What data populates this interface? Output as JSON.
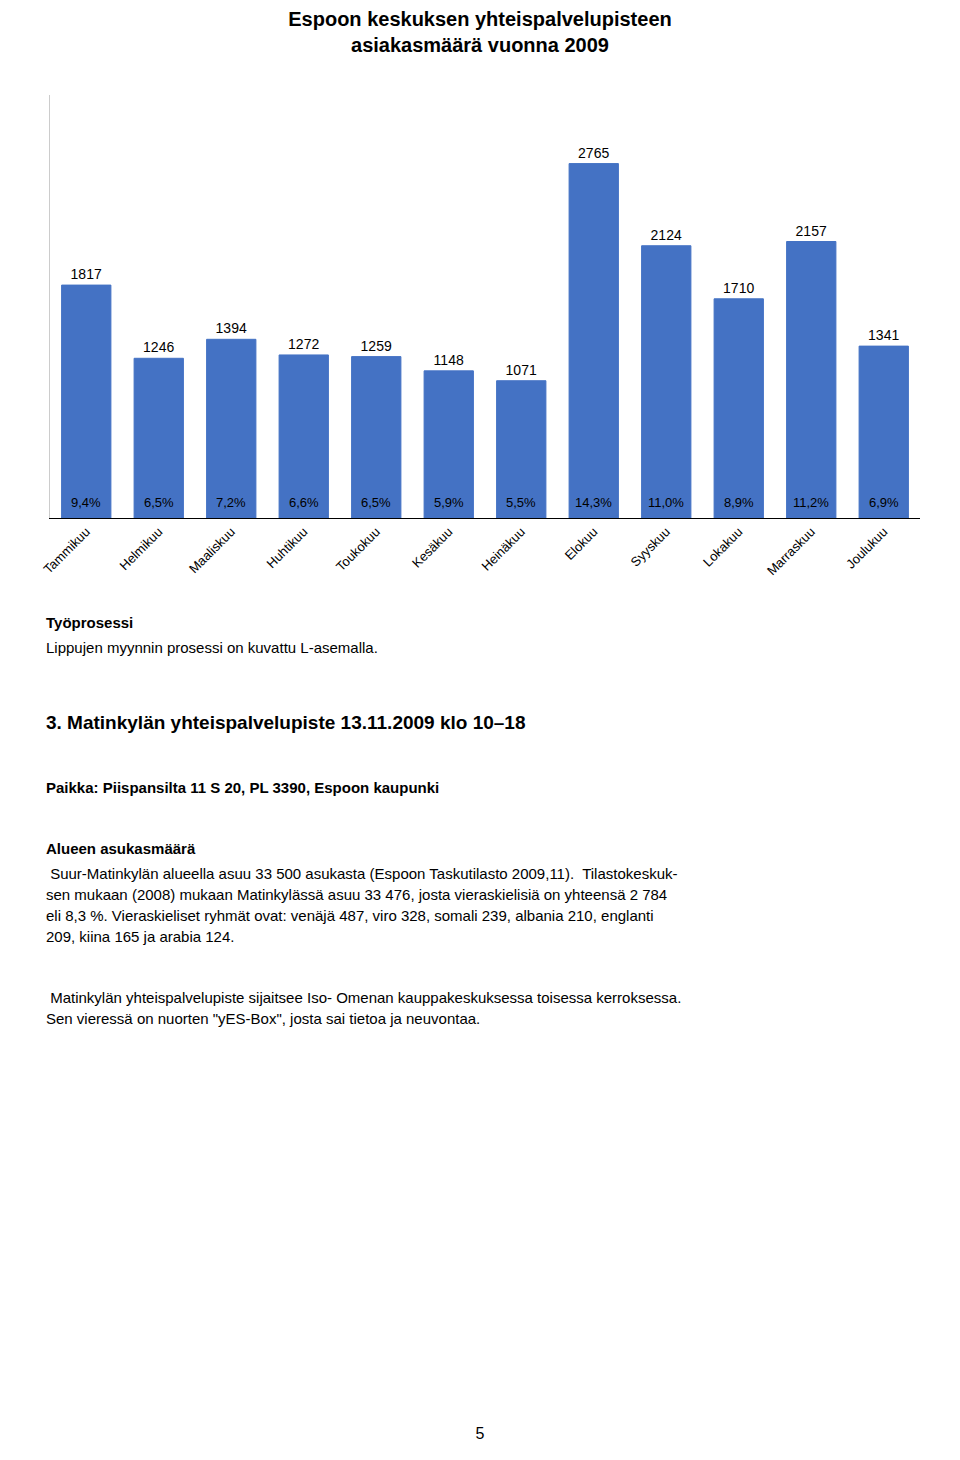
{
  "chart_data": {
    "type": "bar",
    "title": "Espoon keskuksen yhteispalvelupisteen\nasiakasmäärä vuonna 2009",
    "categories": [
      "Tammikuu",
      "Helmikuu",
      "Maaliskuu",
      "Huhtikuu",
      "Toukokuu",
      "Kesäkuu",
      "Heinäkuu",
      "Elokuu",
      "Syyskuu",
      "Lokakuu",
      "Marraskuu",
      "Joulukuu"
    ],
    "values": [
      1817,
      1246,
      1394,
      1272,
      1259,
      1148,
      1071,
      2765,
      2124,
      1710,
      2157,
      1341
    ],
    "percentages": [
      9.4,
      6.5,
      7.2,
      6.6,
      6.5,
      5.9,
      5.5,
      14.3,
      11.0,
      8.9,
      11.2,
      6.9
    ],
    "percentage_labels": [
      "9,4%",
      "6,5%",
      "7,2%",
      "6,6%",
      "6,5%",
      "5,9%",
      "5,5%",
      "14,3%",
      "11,0%",
      "8,9%",
      "11,2%",
      "6,9%"
    ],
    "color": "#4472C4",
    "ylim": [
      0,
      3300
    ],
    "grid": false,
    "data_labels": true,
    "tick_labels": "x",
    "annotations": [
      "Työprosessi",
      "Lippujen myynnin prosessi on kuvattu L-asemalla.",
      "3. Matinkylän yhteispalvelupiste 13.11.2009 klo 10–18",
      "Paikka: Piispansilta 11 S 20, PL 3390, Espoon kaupunki",
      "Alueen asukasmäärä",
      " Suur-Matinkylän alueella asuu 33 500 asukasta (Espoon Taskutilasto 2009,11).  Tilastokeskuk-\nsen mukaan (2008) mukaan Matinkylässä asuu 33 476, josta vieraskielisiä on yhteensä 2 784\neli 8,3 %. Vieraskieliset ryhmät ovat: venäjä 487, viro 328, somali 239, albania 210, englanti\n209, kiina 165 ja arabia 124.",
      " Matinkylän yhteispalvelupiste sijaitsee Iso- Omenan kauppakeskuksessa toisessa kerroksessa.\nSen vieressä on nuorten \"yES-Box\", josta sai tietoa ja neuvontaa.",
      "5"
    ]
  }
}
